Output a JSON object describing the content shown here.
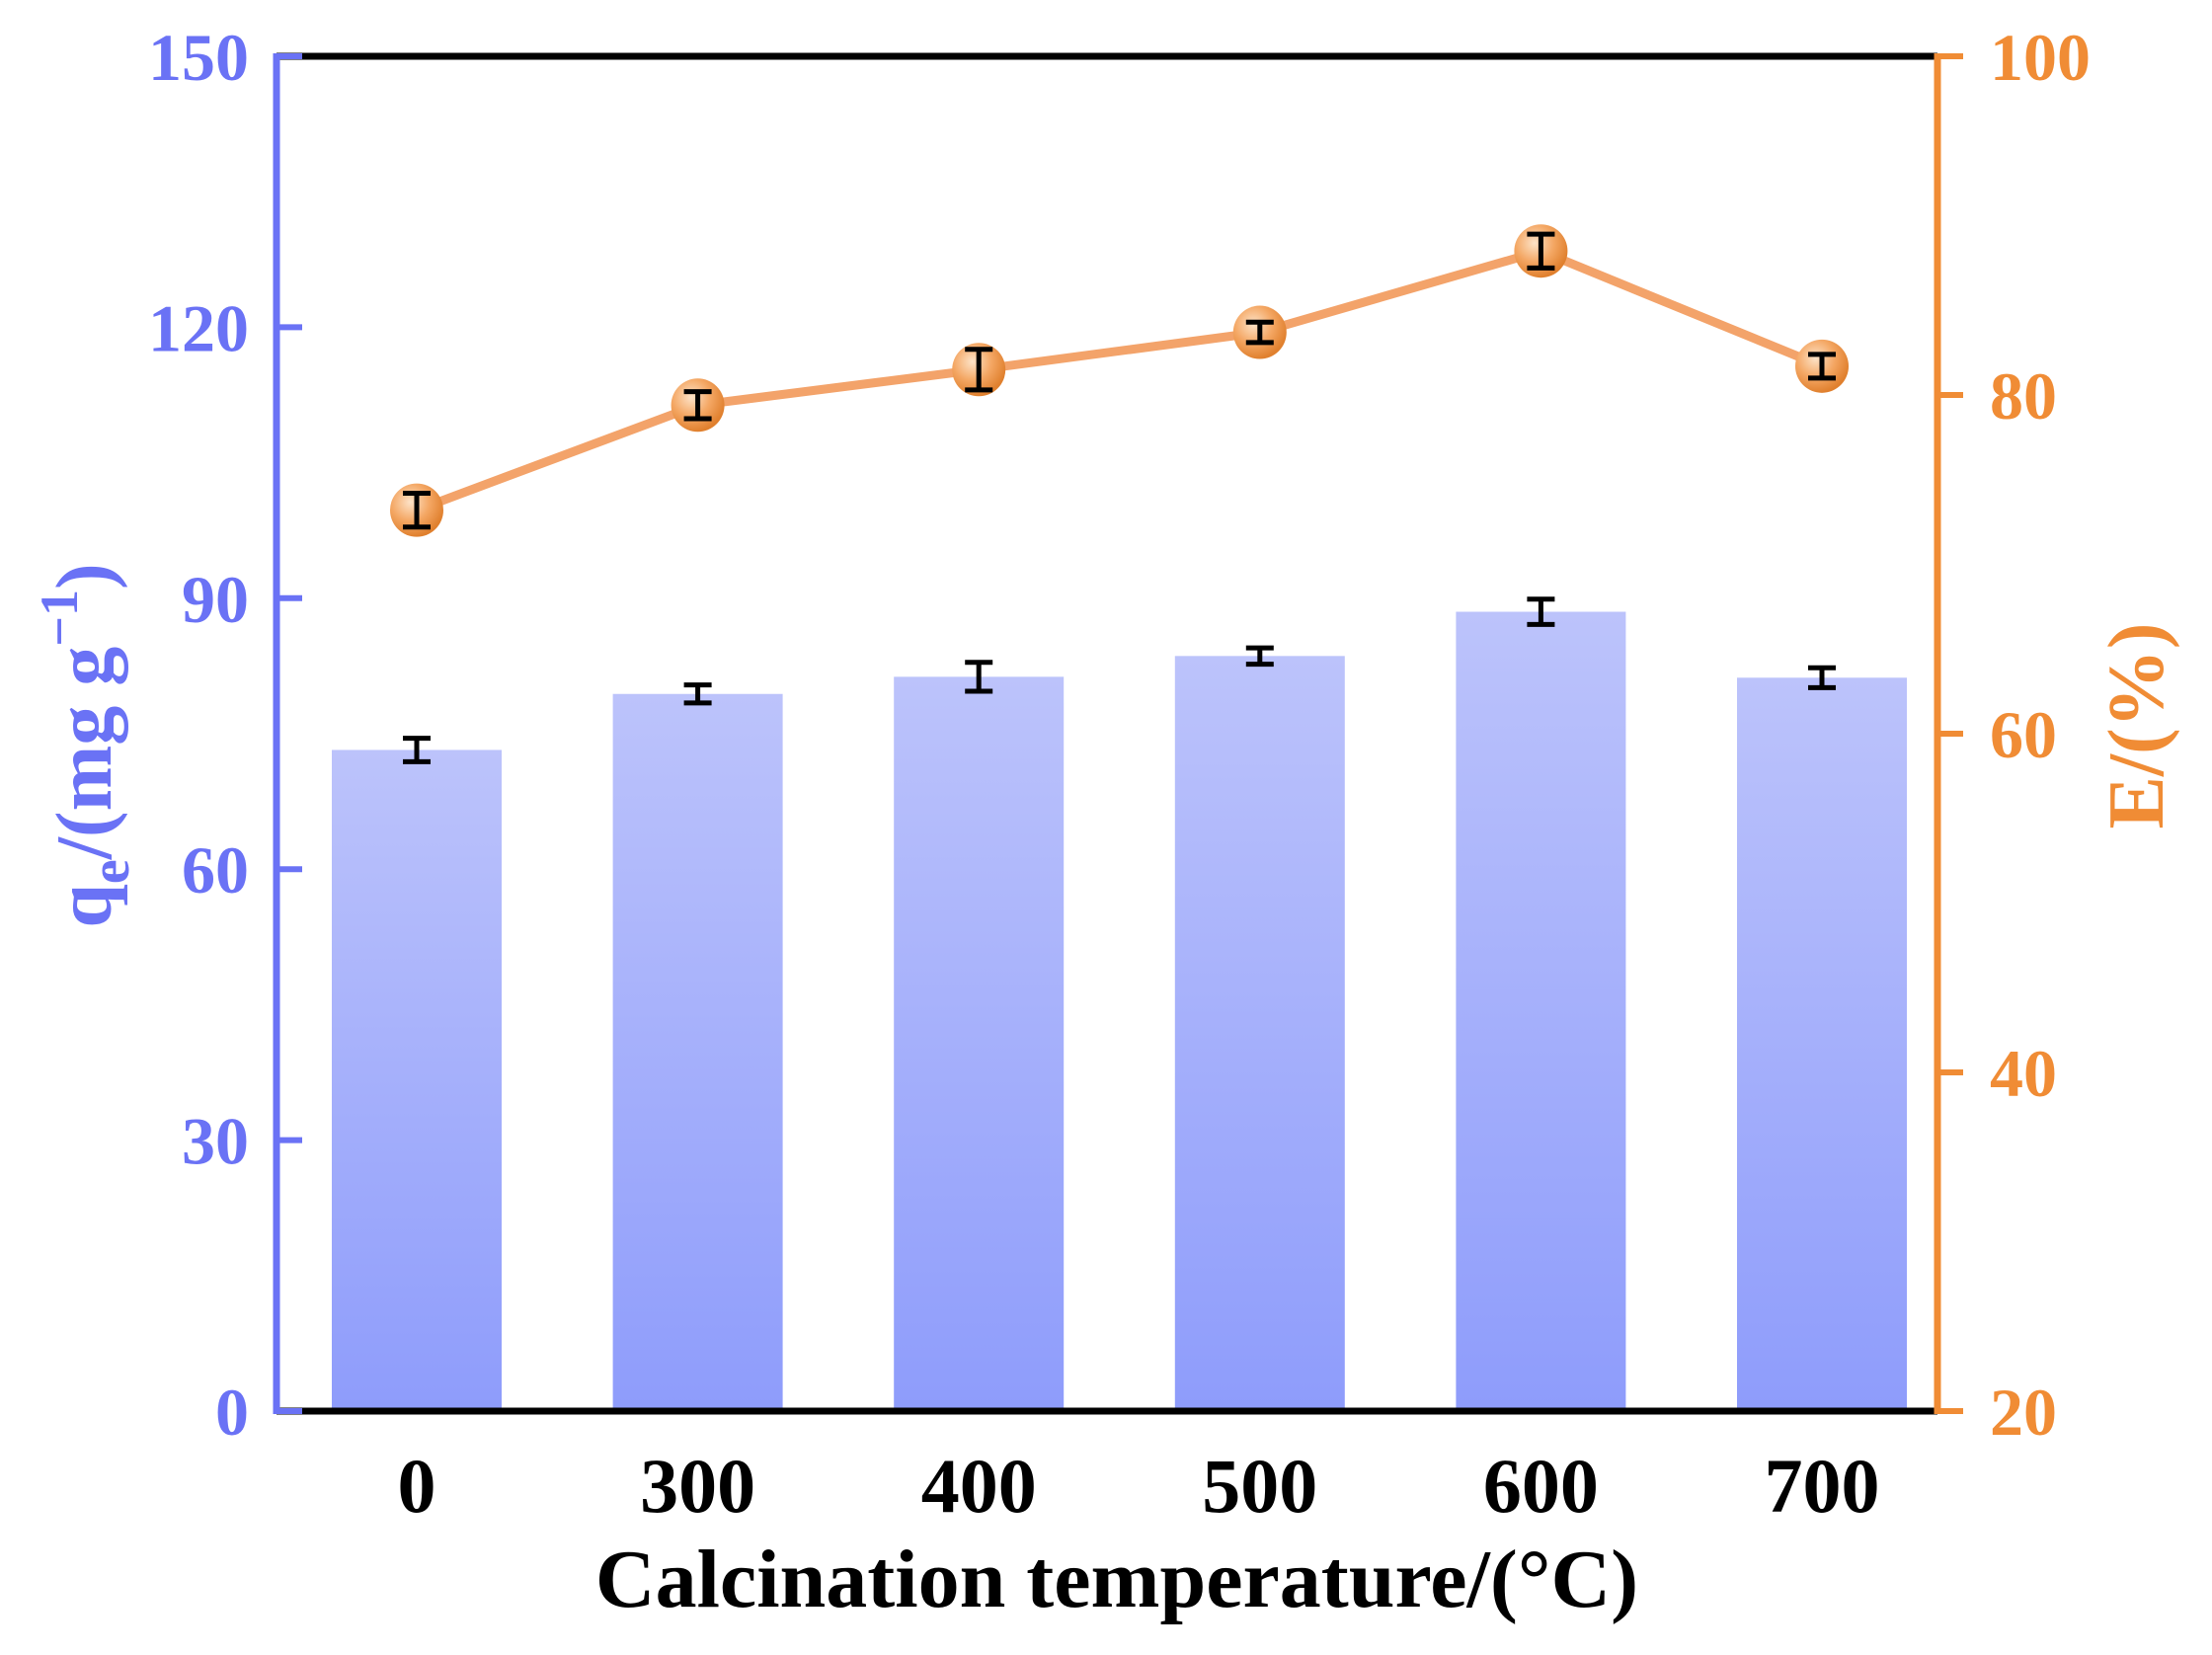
{
  "chart_data": {
    "type": "bar+line",
    "categories": [
      "0",
      "300",
      "400",
      "500",
      "600",
      "700"
    ],
    "xlabel": "Calcination temperature/(°C)",
    "ylabel_left": {
      "main": "q",
      "sub": "e",
      "rest": "/(mg g",
      "sup": "−1",
      "close": ")"
    },
    "ylabel_right": "E/(%)",
    "ylim_left": [
      0,
      150
    ],
    "yticks_left": [
      0,
      30,
      60,
      90,
      120,
      150
    ],
    "ylim_right": [
      20,
      100
    ],
    "yticks_right": [
      20,
      40,
      60,
      80,
      100
    ],
    "series": [
      {
        "name": "qe",
        "axis": "left",
        "kind": "bar",
        "values": [
          73.2,
          79.4,
          81.3,
          83.6,
          88.5,
          81.2
        ],
        "errors": [
          1.3,
          1.0,
          1.6,
          0.9,
          1.4,
          1.1
        ]
      },
      {
        "name": "E",
        "axis": "right",
        "kind": "line",
        "values": [
          73.2,
          79.4,
          81.5,
          83.7,
          88.5,
          81.7
        ],
        "errors": [
          1.0,
          0.8,
          1.2,
          0.6,
          1.0,
          0.7
        ]
      }
    ],
    "colors": {
      "left_axis": "#6a72f5",
      "right_axis": "#f08c35",
      "bar_top": "#bcc3fb",
      "bar_bottom": "#8e9cfb",
      "line": "#f3a36a",
      "marker": "#f19a52",
      "error_bar": "#000000",
      "frame": "#000000"
    }
  }
}
